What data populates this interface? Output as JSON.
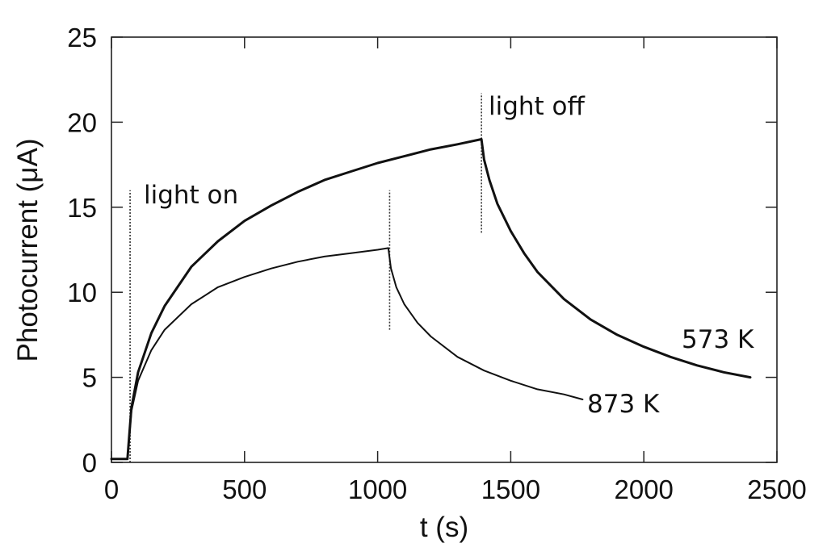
{
  "chart_data": {
    "type": "line",
    "title": "",
    "xlabel": "t (s)",
    "ylabel": "Photocurrent (μA)",
    "xlim": [
      0,
      2500
    ],
    "ylim": [
      0,
      25
    ],
    "xticks": [
      "0",
      "500",
      "1000",
      "1500",
      "2000",
      "2500"
    ],
    "yticks": [
      "0",
      "5",
      "10",
      "15",
      "20",
      "25"
    ],
    "grid": false,
    "series": [
      {
        "name": "573 K",
        "color": "#111111",
        "x": [
          0,
          60,
          75,
          100,
          150,
          200,
          300,
          400,
          500,
          600,
          700,
          800,
          900,
          1000,
          1100,
          1200,
          1300,
          1390,
          1400,
          1420,
          1450,
          1500,
          1550,
          1600,
          1700,
          1800,
          1900,
          2000,
          2100,
          2200,
          2300,
          2400
        ],
        "y": [
          0.2,
          0.2,
          3.2,
          5.3,
          7.6,
          9.2,
          11.5,
          13.0,
          14.2,
          15.1,
          15.9,
          16.6,
          17.1,
          17.6,
          18.0,
          18.4,
          18.7,
          19.0,
          17.8,
          16.6,
          15.2,
          13.6,
          12.3,
          11.2,
          9.6,
          8.4,
          7.5,
          6.8,
          6.2,
          5.7,
          5.3,
          5.0
        ]
      },
      {
        "name": "873 K",
        "color": "#111111",
        "x": [
          0,
          60,
          75,
          100,
          150,
          200,
          300,
          400,
          500,
          600,
          700,
          800,
          900,
          1000,
          1040,
          1050,
          1070,
          1100,
          1150,
          1200,
          1300,
          1400,
          1500,
          1600,
          1700,
          1770
        ],
        "y": [
          0.2,
          0.2,
          3.0,
          4.8,
          6.6,
          7.8,
          9.3,
          10.3,
          10.9,
          11.4,
          11.8,
          12.1,
          12.3,
          12.5,
          12.6,
          11.4,
          10.3,
          9.3,
          8.2,
          7.4,
          6.2,
          5.4,
          4.8,
          4.3,
          4.0,
          3.7
        ]
      }
    ],
    "markers": [
      {
        "label": "light on",
        "x": 70,
        "y_from": 0,
        "y_to": 16
      },
      {
        "label": "",
        "x": 1045,
        "y_from": 7.8,
        "y_to": 16
      },
      {
        "label": "light off",
        "x": 1390,
        "y_from": 13.5,
        "y_to": 21.7
      }
    ],
    "annotations": [
      "light on",
      "light off",
      "573 K",
      "873 K"
    ]
  }
}
